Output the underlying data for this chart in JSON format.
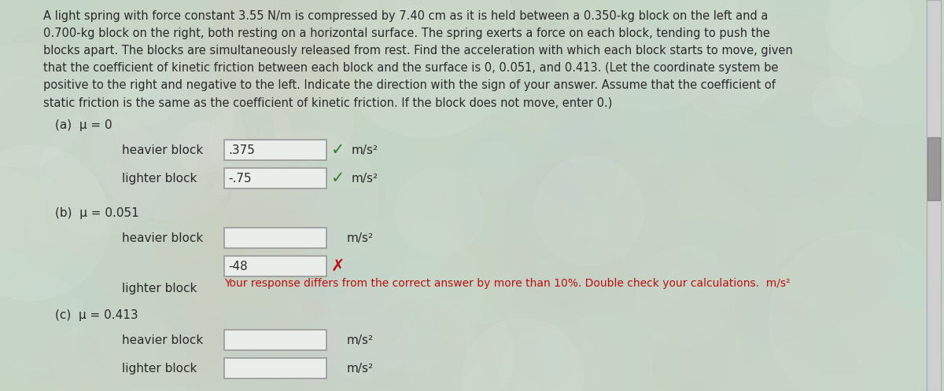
{
  "bg_color": "#c5d5c5",
  "text_color": "#2a2a2a",
  "problem_lines": [
    "A light spring with force constant 3.55 N/m is compressed by 7.40 cm as it is held between a 0.350-kg block on the left and a",
    "0.700-kg block on the right, both resting on a horizontal surface. The spring exerts a force on each block, tending to push the",
    "blocks apart. The blocks are simultaneously released from rest. Find the acceleration with which each block starts to move, given",
    "that the coefficient of kinetic friction between each block and the surface is 0, 0.051, and 0.413. (Let the coordinate system be",
    "positive to the right and negative to the left. Indicate the direction with the sign of your answer. Assume that the coefficient of",
    "static friction is the same as the coefficient of kinetic friction. If the block does not move, enter 0.)"
  ],
  "section_a_label": "(a)  μ = 0",
  "section_b_label": "(b)  μ = 0.051",
  "section_c_label": "(c)  μ = 0.413",
  "heavier_block_label": "heavier block",
  "lighter_block_label": "lighter block",
  "unit_label": "m/s²",
  "a_heavier_value": ".375",
  "a_lighter_value": "-.75",
  "b_heavier_value": "",
  "b_lighter_value": "-48",
  "c_heavier_value": "",
  "c_lighter_value": "",
  "error_message": "Your response differs from the correct answer by more than 10%. Double check your calculations.  m/s²",
  "check_color": "#3a7a3a",
  "cross_color": "#bb1111",
  "error_color": "#bb1111",
  "box_fill": "#eaeeea",
  "box_edge": "#999999",
  "scrollbar_color": "#aaaaaa",
  "font_size_problem": 10.5,
  "font_size_section": 11,
  "font_size_label": 11,
  "font_size_value": 11,
  "font_size_unit": 11,
  "font_size_error": 10
}
